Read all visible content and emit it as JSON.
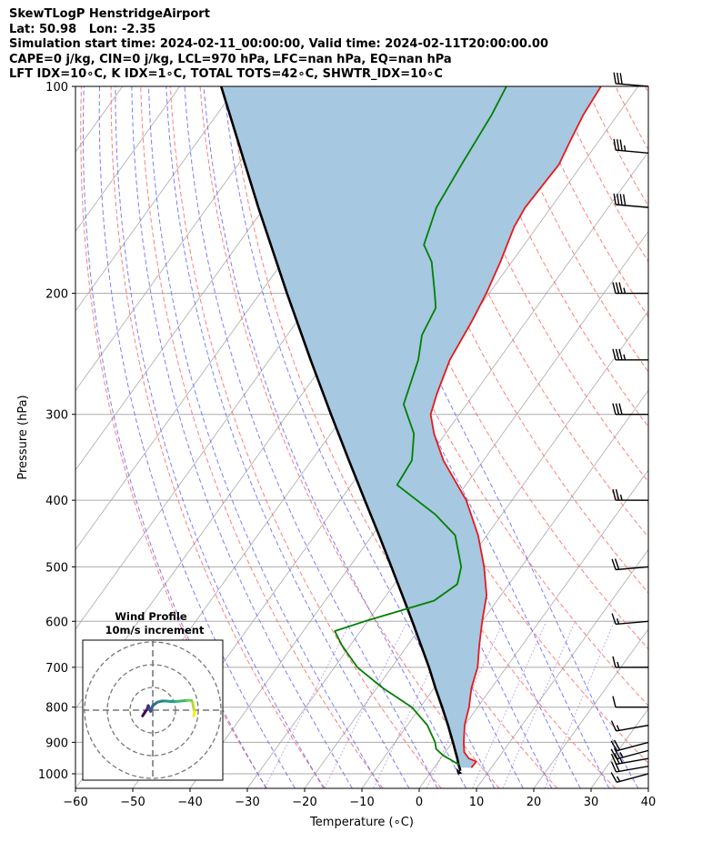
{
  "header": {
    "line1": "SkewTLogP HenstridgeAirport",
    "line2": "Lat: 50.98   Lon: -2.35",
    "line3": "Simulation start time: 2024-02-11_00:00:00, Valid time: 2024-02-11T20:00:00.00",
    "line4": "CAPE=0 j/kg, CIN=0 j/kg, LCL=970 hPa, LFC=nan hPa, EQ=nan hPa",
    "line5": "LFT IDX=10∘C, K IDX=1∘C, TOTAL TOTS=42∘C, SHWTR_IDX=10∘C"
  },
  "chart_data": {
    "type": "line",
    "subtype": "skew-T log-p",
    "xlabel": "Temperature (∘C)",
    "ylabel": "Pressure (hPa)",
    "xlim": [
      -60,
      40
    ],
    "ylim": [
      1050,
      100
    ],
    "y_scale": "log",
    "x_ticks": [
      -60,
      -50,
      -40,
      -30,
      -20,
      -10,
      0,
      10,
      20,
      30,
      40
    ],
    "x_tick_labels": [
      "−60",
      "−50",
      "−40",
      "−30",
      "−20",
      "−10",
      "0",
      "10",
      "20",
      "30",
      "40"
    ],
    "y_ticks": [
      1000,
      900,
      800,
      700,
      600,
      500,
      400,
      300,
      200,
      100
    ],
    "y_tick_labels": [
      "1000",
      "900",
      "800",
      "700",
      "600",
      "500",
      "400",
      "300",
      "200",
      "100"
    ],
    "grid": true,
    "colors": {
      "temperature": "#e31a1c",
      "dewpoint": "#008000",
      "parcel": "#000000",
      "cin_fill": "#a6c8e0",
      "dry_adiabat": "#ff6666",
      "moist_adiabat": "#6666ff",
      "mixing_ratio": "#9966cc",
      "isotherm_grid": "#aaaaaa"
    },
    "temperature": {
      "pressure": [
        980,
        960,
        950,
        930,
        900,
        850,
        800,
        750,
        700,
        650,
        600,
        550,
        500,
        450,
        400,
        350,
        320,
        300,
        280,
        250,
        220,
        200,
        180,
        160,
        150,
        130,
        120,
        110,
        100
      ],
      "temp": [
        6.5,
        6.6,
        4.9,
        3.3,
        2.0,
        0.0,
        -1.5,
        -3.5,
        -5.0,
        -7.5,
        -10.0,
        -12.5,
        -16.5,
        -21.5,
        -28.0,
        -37.0,
        -42.0,
        -45.0,
        -46.5,
        -48.5,
        -49.5,
        -50.5,
        -52.0,
        -54.0,
        -54.5,
        -54.0,
        -55.0,
        -56.0,
        -56.5
      ]
    },
    "dewpoint": {
      "pressure": [
        970,
        940,
        920,
        900,
        850,
        800,
        750,
        700,
        650,
        620,
        600,
        560,
        530,
        500,
        450,
        420,
        380,
        350,
        320,
        290,
        250,
        230,
        210,
        200,
        180,
        170,
        150,
        130,
        110,
        100
      ],
      "dewpoint": [
        4.0,
        0.0,
        -2.0,
        -3.0,
        -6.5,
        -11.5,
        -19.0,
        -26.0,
        -31.5,
        -34.5,
        -30.5,
        -21.0,
        -19.0,
        -20.5,
        -25.5,
        -31.5,
        -42.0,
        -42.5,
        -45.5,
        -51.0,
        -54.0,
        -56.5,
        -57.5,
        -59.5,
        -64.0,
        -67.5,
        -70.0,
        -71.0,
        -72.0,
        -73.0
      ]
    },
    "parcel": {
      "pressure": [
        990,
        970,
        950,
        900,
        850,
        800,
        750,
        700,
        650,
        600,
        550,
        500,
        450,
        400,
        350,
        300,
        250,
        200,
        150,
        100
      ],
      "temp": [
        5.0,
        3.9,
        2.9,
        0.1,
        -2.9,
        -6.2,
        -9.8,
        -13.5,
        -17.7,
        -22.2,
        -27.2,
        -32.7,
        -38.8,
        -45.7,
        -53.5,
        -62.4,
        -72.8,
        -85.3,
        -101.1,
        -122.8
      ]
    },
    "wind_barbs": {
      "pressure": [
        1000,
        975,
        950,
        925,
        900,
        850,
        800,
        700,
        600,
        500,
        400,
        300,
        250,
        200,
        150,
        125,
        100
      ],
      "speed_kt": [
        15,
        20,
        25,
        25,
        20,
        15,
        10,
        15,
        15,
        20,
        25,
        30,
        35,
        35,
        40,
        35,
        30
      ],
      "direction_deg": [
        255,
        260,
        260,
        255,
        255,
        260,
        270,
        270,
        265,
        265,
        270,
        270,
        270,
        270,
        275,
        275,
        275
      ]
    },
    "inset": {
      "title_line1": "Wind Profile",
      "title_line2": "10m/s increment",
      "rings": 3,
      "hodograph_u": [
        -4.5,
        -3.5,
        -2.5,
        -2.0,
        -1.5,
        -1.0,
        -0.5,
        0.0,
        2.0,
        4.0,
        6.0,
        8.0,
        10.0,
        12.5,
        15.0,
        17.0,
        17.5,
        18.0,
        18.5,
        18.0
      ],
      "hodograph_v": [
        -2.5,
        -1.0,
        0.5,
        2.0,
        1.0,
        -0.5,
        0.5,
        2.0,
        3.5,
        4.0,
        4.0,
        3.8,
        3.8,
        4.0,
        4.3,
        4.3,
        3.5,
        0.8,
        -0.5,
        -2.5
      ]
    }
  }
}
